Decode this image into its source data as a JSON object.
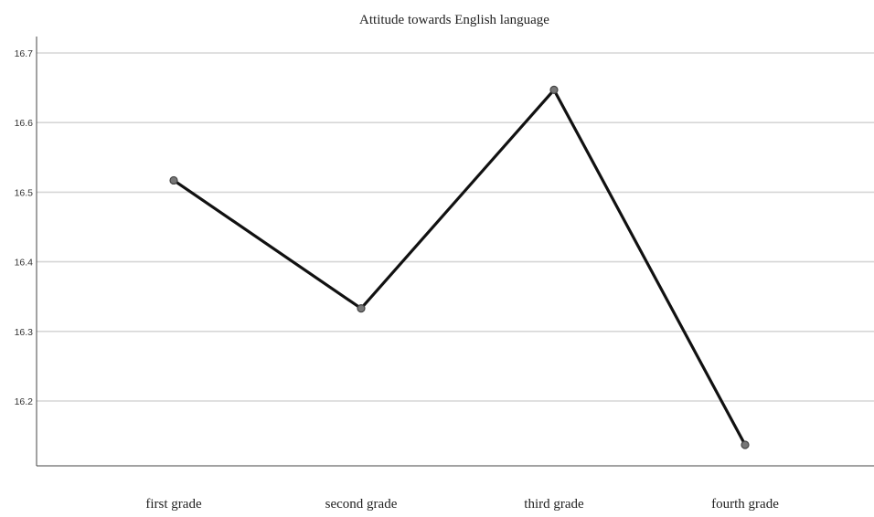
{
  "chart_data": {
    "type": "line",
    "title": "Attitude towards English language",
    "xlabel": "",
    "ylabel": "",
    "categories": [
      "first grade",
      "second grade",
      "third grade",
      "fourth grade"
    ],
    "series": [
      {
        "values": [
          16.517,
          16.333,
          16.647,
          16.137
        ]
      }
    ],
    "yticks": [
      "16.2",
      "16.3",
      "16.4",
      "16.5",
      "16.6",
      "16.7"
    ],
    "ylim": [
      16.1,
      16.7
    ],
    "grid": true,
    "legend": "none",
    "colors": {
      "line": "#111111",
      "marker": "#777777",
      "grid": "#d6d6d6"
    }
  }
}
